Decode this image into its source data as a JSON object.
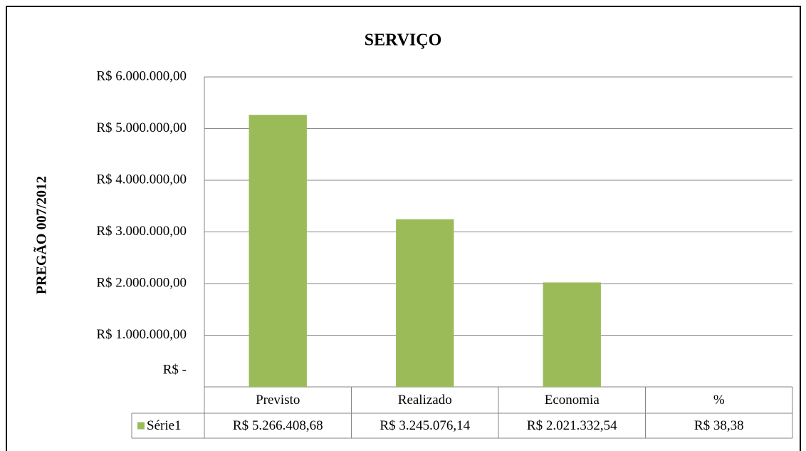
{
  "chart_data": {
    "type": "bar",
    "title": "SERVIÇO",
    "y_label": "PREGÃO 007/2012",
    "categories": [
      "Previsto",
      "Realizado",
      "Economia",
      "%"
    ],
    "series": [
      {
        "name": "Série1",
        "color": "#9bbb59",
        "values": [
          5266408.68,
          3245076.14,
          2021332.54,
          38.38
        ],
        "value_labels": [
          "R$ 5.266.408,68",
          "R$ 3.245.076,14",
          "R$ 2.021.332,54",
          "R$ 38,38"
        ]
      }
    ],
    "ylim": [
      0,
      6000000
    ],
    "yticks": [
      {
        "value": 0,
        "label": "R$ -"
      },
      {
        "value": 1000000,
        "label": "R$ 1.000.000,00"
      },
      {
        "value": 2000000,
        "label": "R$ 2.000.000,00"
      },
      {
        "value": 3000000,
        "label": "R$ 3.000.000,00"
      },
      {
        "value": 4000000,
        "label": "R$ 4.000.000,00"
      },
      {
        "value": 5000000,
        "label": "R$ 5.000.000,00"
      },
      {
        "value": 6000000,
        "label": "R$ 6.000.000,00"
      }
    ],
    "grid": true
  }
}
